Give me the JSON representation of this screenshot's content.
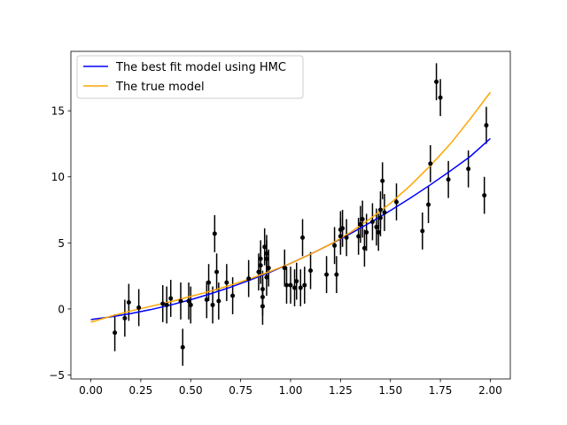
{
  "chart_data": {
    "type": "scatter",
    "title": "",
    "xlabel": "",
    "ylabel": "",
    "xlim": [
      -0.1,
      2.1
    ],
    "ylim": [
      -5.3,
      19.5
    ],
    "grid": false,
    "legend_position": "top-left",
    "x_ticks": [
      {
        "value": 0.0,
        "label": "0.00"
      },
      {
        "value": 0.25,
        "label": "0.25"
      },
      {
        "value": 0.5,
        "label": "0.50"
      },
      {
        "value": 0.75,
        "label": "0.75"
      },
      {
        "value": 1.0,
        "label": "1.00"
      },
      {
        "value": 1.25,
        "label": "1.25"
      },
      {
        "value": 1.5,
        "label": "1.50"
      },
      {
        "value": 1.75,
        "label": "1.75"
      },
      {
        "value": 2.0,
        "label": "2.00"
      }
    ],
    "y_ticks": [
      {
        "value": -5,
        "label": "−5"
      },
      {
        "value": 0,
        "label": "0"
      },
      {
        "value": 5,
        "label": "5"
      },
      {
        "value": 10,
        "label": "10"
      },
      {
        "value": 15,
        "label": "15"
      }
    ],
    "series": [
      {
        "name": "The best fit model using HMC",
        "kind": "line",
        "color": "#0000ff",
        "x": [
          0.0,
          0.1,
          0.2,
          0.3,
          0.4,
          0.5,
          0.6,
          0.7,
          0.8,
          0.9,
          1.0,
          1.1,
          1.2,
          1.3,
          1.4,
          1.5,
          1.6,
          1.7,
          1.8,
          1.9,
          2.0
        ],
        "y": [
          -0.8,
          -0.6,
          -0.35,
          -0.05,
          0.3,
          0.7,
          1.15,
          1.65,
          2.2,
          2.8,
          3.45,
          4.15,
          4.9,
          5.7,
          6.55,
          7.45,
          8.4,
          9.4,
          10.45,
          11.55,
          12.9
        ]
      },
      {
        "name": "The true model",
        "kind": "line",
        "color": "#ffa500",
        "x": [
          0.0,
          0.1,
          0.2,
          0.3,
          0.4,
          0.5,
          0.6,
          0.7,
          0.8,
          0.9,
          1.0,
          1.1,
          1.2,
          1.3,
          1.4,
          1.5,
          1.6,
          1.7,
          1.8,
          1.9,
          2.0
        ],
        "y": [
          -1.0,
          -0.55,
          -0.15,
          0.2,
          0.55,
          0.95,
          1.35,
          1.8,
          2.3,
          2.85,
          3.45,
          4.15,
          4.9,
          5.8,
          6.85,
          8.0,
          9.35,
          10.85,
          12.5,
          14.4,
          16.4
        ]
      },
      {
        "name": "",
        "kind": "errorbar",
        "color": "#000000",
        "x": [
          0.12,
          0.17,
          0.19,
          0.24,
          0.36,
          0.38,
          0.4,
          0.45,
          0.46,
          0.49,
          0.5,
          0.58,
          0.59,
          0.61,
          0.62,
          0.63,
          0.64,
          0.68,
          0.71,
          0.79,
          0.84,
          0.85,
          0.85,
          0.86,
          0.86,
          0.86,
          0.87,
          0.88,
          0.88,
          0.88,
          0.89,
          0.97,
          0.98,
          1.0,
          1.02,
          1.03,
          1.05,
          1.06,
          1.07,
          1.1,
          1.18,
          1.22,
          1.23,
          1.25,
          1.25,
          1.26,
          1.28,
          1.34,
          1.35,
          1.36,
          1.37,
          1.38,
          1.41,
          1.43,
          1.44,
          1.45,
          1.45,
          1.46,
          1.47,
          1.53,
          1.66,
          1.69,
          1.7,
          1.73,
          1.75,
          1.79,
          1.89,
          1.97,
          1.98
        ],
        "y": [
          -1.8,
          -0.7,
          0.5,
          0.1,
          0.4,
          0.3,
          0.8,
          0.6,
          -2.9,
          0.6,
          0.3,
          0.7,
          2.0,
          0.3,
          5.7,
          2.8,
          0.6,
          2.0,
          1.0,
          2.3,
          2.8,
          3.3,
          3.8,
          1.5,
          0.9,
          0.2,
          4.7,
          4.2,
          3.8,
          2.4,
          3.1,
          3.1,
          1.8,
          1.8,
          1.6,
          2.1,
          1.6,
          5.4,
          1.8,
          2.9,
          2.6,
          4.8,
          2.6,
          5.5,
          6.0,
          6.1,
          5.4,
          5.5,
          6.4,
          6.8,
          4.6,
          5.8,
          6.6,
          6.2,
          5.8,
          7.5,
          6.9,
          9.7,
          7.3,
          8.1,
          5.9,
          7.9,
          11.0,
          17.2,
          16.0,
          9.8,
          10.6,
          8.6,
          13.9
        ],
        "yerr": 1.4
      }
    ]
  }
}
